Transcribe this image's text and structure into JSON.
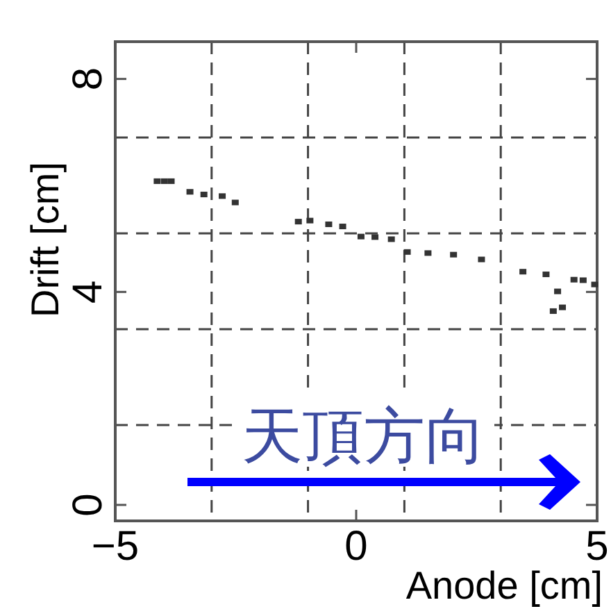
{
  "chart_data": {
    "type": "scatter",
    "xlabel": "Anode [cm]",
    "ylabel": "Drift [cm]",
    "xlim": [
      -5,
      5
    ],
    "ylim": [
      -0.3,
      8.7
    ],
    "xticks": [
      -5,
      0,
      5
    ],
    "yticks": [
      0,
      4,
      8
    ],
    "marker": "square",
    "series": [
      {
        "color": "#333333",
        "x": [
          -4.13,
          -3.98,
          -3.84,
          -3.45,
          -3.16,
          -2.78,
          -2.51,
          -1.2,
          -0.96,
          -0.57,
          -0.28,
          0.1,
          0.39,
          0.73,
          1.06,
          1.49,
          2.02,
          2.6,
          3.46,
          3.94,
          4.09,
          4.28,
          4.18,
          4.52,
          4.71,
          4.95
        ],
        "values": [
          6.08,
          6.08,
          6.08,
          5.88,
          5.83,
          5.8,
          5.68,
          5.32,
          5.34,
          5.27,
          5.23,
          5.04,
          5.03,
          4.99,
          4.75,
          4.73,
          4.7,
          4.61,
          4.38,
          4.33,
          3.64,
          3.71,
          4.01,
          4.23,
          4.22,
          4.14
        ]
      }
    ],
    "ref_lines": [
      {
        "axis": "x",
        "value": -3,
        "color": "#444444",
        "line_style": "dashed"
      },
      {
        "axis": "x",
        "value": -1,
        "color": "#444444",
        "line_style": "dashed"
      },
      {
        "axis": "x",
        "value": 1,
        "color": "#444444",
        "line_style": "dashed"
      },
      {
        "axis": "x",
        "value": 3,
        "color": "#444444",
        "line_style": "dashed"
      },
      {
        "axis": "y",
        "value": 1.5,
        "color": "#444444",
        "line_style": "dashed"
      },
      {
        "axis": "y",
        "value": 3.3,
        "color": "#444444",
        "line_style": "dashed"
      },
      {
        "axis": "y",
        "value": 5.1,
        "color": "#444444",
        "line_style": "dashed"
      },
      {
        "axis": "y",
        "value": 6.9,
        "color": "#444444",
        "line_style": "dashed"
      }
    ],
    "annotations": [
      "天頂方向"
    ]
  }
}
